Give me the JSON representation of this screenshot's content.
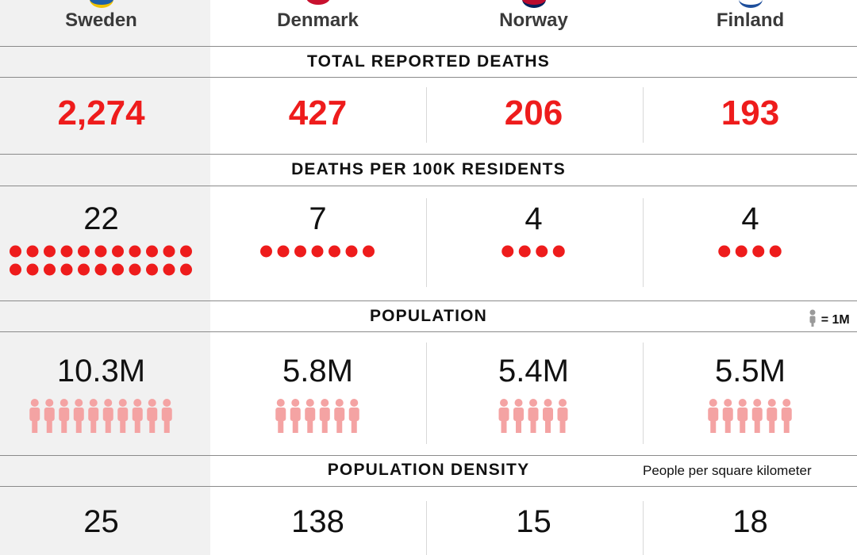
{
  "countries": [
    "Sweden",
    "Denmark",
    "Norway",
    "Finland"
  ],
  "sections": {
    "deaths": {
      "title": "TOTAL REPORTED DEATHS",
      "values": [
        "2,274",
        "427",
        "206",
        "193"
      ]
    },
    "per100k": {
      "title": "DEATHS PER 100K RESIDENTS",
      "values": [
        "22",
        "7",
        "4",
        "4"
      ]
    },
    "population": {
      "title": "POPULATION",
      "legend": "= 1M",
      "values": [
        "10.3M",
        "5.8M",
        "5.4M",
        "5.5M"
      ]
    },
    "density": {
      "title": "POPULATION DENSITY",
      "note": "People per square kilometer",
      "values": [
        "25",
        "138",
        "15",
        "18"
      ]
    }
  },
  "colors": {
    "accent_red": "#ee1c1c",
    "person_pink": "#f4a3a3",
    "legend_gray": "#9a9a9a",
    "sweden_background": "#f1f1f1"
  },
  "chart_data": [
    {
      "type": "table",
      "title": "TOTAL REPORTED DEATHS",
      "categories": [
        "Sweden",
        "Denmark",
        "Norway",
        "Finland"
      ],
      "values": [
        2274,
        427,
        206,
        193
      ]
    },
    {
      "type": "scatter",
      "title": "DEATHS PER 100K RESIDENTS",
      "categories": [
        "Sweden",
        "Denmark",
        "Norway",
        "Finland"
      ],
      "values": [
        22,
        7,
        4,
        4
      ],
      "unit_icon": "red-dot"
    },
    {
      "type": "scatter",
      "title": "POPULATION",
      "categories": [
        "Sweden",
        "Denmark",
        "Norway",
        "Finland"
      ],
      "values": [
        10.3,
        5.8,
        5.4,
        5.5
      ],
      "labels": [
        "10.3M",
        "5.8M",
        "5.4M",
        "5.5M"
      ],
      "unit_icon": "person-icon",
      "unit_value": 1000000
    },
    {
      "type": "table",
      "title": "POPULATION DENSITY",
      "subtitle": "People per square kilometer",
      "categories": [
        "Sweden",
        "Denmark",
        "Norway",
        "Finland"
      ],
      "values": [
        25,
        138,
        15,
        18
      ]
    }
  ]
}
